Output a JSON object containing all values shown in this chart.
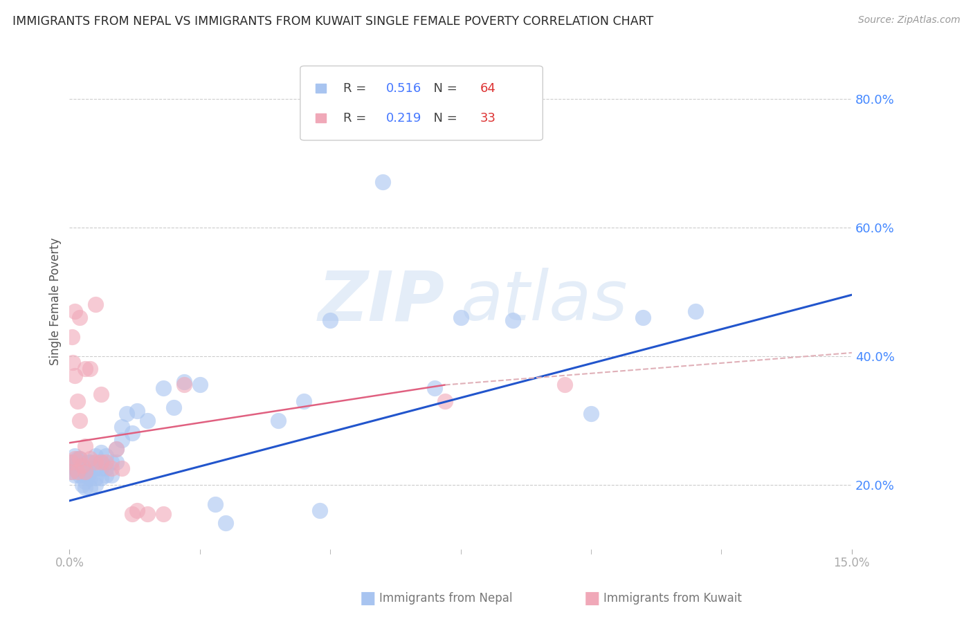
{
  "title": "IMMIGRANTS FROM NEPAL VS IMMIGRANTS FROM KUWAIT SINGLE FEMALE POVERTY CORRELATION CHART",
  "source": "Source: ZipAtlas.com",
  "ylabel": "Single Female Poverty",
  "xlim": [
    0.0,
    0.15
  ],
  "ylim": [
    0.1,
    0.87
  ],
  "ytick_positions": [
    0.2,
    0.4,
    0.6,
    0.8
  ],
  "ytick_labels": [
    "20.0%",
    "40.0%",
    "60.0%",
    "80.0%"
  ],
  "nepal_color": "#a8c4f0",
  "kuwait_color": "#f0a8b8",
  "nepal_R": "0.516",
  "nepal_N": "64",
  "kuwait_R": "0.219",
  "kuwait_N": "33",
  "nepal_x": [
    0.0005,
    0.0005,
    0.001,
    0.001,
    0.001,
    0.001,
    0.0015,
    0.0015,
    0.0015,
    0.002,
    0.002,
    0.002,
    0.002,
    0.0025,
    0.0025,
    0.003,
    0.003,
    0.003,
    0.003,
    0.0035,
    0.0035,
    0.0035,
    0.004,
    0.004,
    0.004,
    0.004,
    0.005,
    0.005,
    0.005,
    0.005,
    0.006,
    0.006,
    0.006,
    0.006,
    0.007,
    0.007,
    0.007,
    0.008,
    0.008,
    0.009,
    0.009,
    0.01,
    0.01,
    0.011,
    0.012,
    0.013,
    0.015,
    0.018,
    0.02,
    0.022,
    0.025,
    0.028,
    0.03,
    0.04,
    0.045,
    0.048,
    0.05,
    0.06,
    0.07,
    0.075,
    0.085,
    0.1,
    0.11,
    0.12
  ],
  "nepal_y": [
    0.235,
    0.22,
    0.245,
    0.23,
    0.225,
    0.215,
    0.22,
    0.24,
    0.23,
    0.225,
    0.215,
    0.23,
    0.24,
    0.2,
    0.22,
    0.195,
    0.205,
    0.215,
    0.225,
    0.215,
    0.22,
    0.235,
    0.195,
    0.21,
    0.22,
    0.235,
    0.2,
    0.21,
    0.225,
    0.245,
    0.21,
    0.225,
    0.235,
    0.25,
    0.215,
    0.225,
    0.245,
    0.215,
    0.235,
    0.235,
    0.255,
    0.27,
    0.29,
    0.31,
    0.28,
    0.315,
    0.3,
    0.35,
    0.32,
    0.36,
    0.355,
    0.17,
    0.14,
    0.3,
    0.33,
    0.16,
    0.455,
    0.67,
    0.35,
    0.46,
    0.455,
    0.31,
    0.46,
    0.47
  ],
  "kuwait_x": [
    0.0004,
    0.0004,
    0.0005,
    0.0006,
    0.001,
    0.001,
    0.001,
    0.0015,
    0.0015,
    0.002,
    0.002,
    0.002,
    0.0025,
    0.003,
    0.003,
    0.003,
    0.004,
    0.004,
    0.005,
    0.005,
    0.006,
    0.006,
    0.007,
    0.008,
    0.009,
    0.01,
    0.012,
    0.013,
    0.015,
    0.018,
    0.022,
    0.072,
    0.095
  ],
  "kuwait_y": [
    0.235,
    0.22,
    0.43,
    0.39,
    0.24,
    0.37,
    0.47,
    0.22,
    0.33,
    0.24,
    0.3,
    0.46,
    0.23,
    0.22,
    0.26,
    0.38,
    0.24,
    0.38,
    0.235,
    0.48,
    0.235,
    0.34,
    0.235,
    0.225,
    0.255,
    0.225,
    0.155,
    0.16,
    0.155,
    0.155,
    0.355,
    0.33,
    0.355
  ],
  "watermark_zip": "ZIP",
  "watermark_atlas": "atlas",
  "nepal_trend": [
    0.0,
    0.15,
    0.175,
    0.495
  ],
  "kuwait_trend_solid": [
    0.0,
    0.072,
    0.265,
    0.355
  ],
  "kuwait_trend_dash": [
    0.072,
    0.15,
    0.355,
    0.405
  ],
  "background_color": "#ffffff",
  "grid_color": "#cccccc",
  "title_color": "#2a2a2a",
  "axis_label_color": "#555555",
  "right_tick_color": "#4488ff",
  "bottom_tick_color": "#aaaaaa",
  "nepal_line_color": "#2255cc",
  "kuwait_solid_color": "#e06080",
  "kuwait_dash_color": "#e0b0b8",
  "legend_text_gray": "#444444",
  "legend_R_color": "#4477ff",
  "legend_N_color": "#dd3333"
}
